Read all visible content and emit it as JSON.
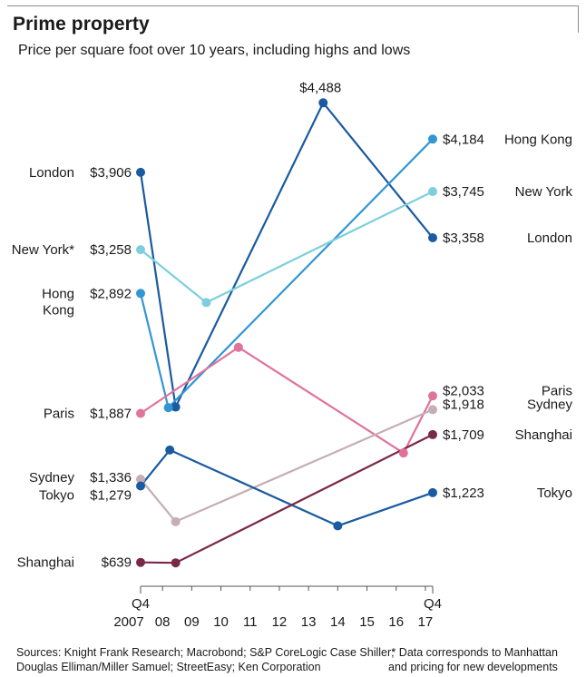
{
  "header": {
    "title": "Prime property",
    "subtitle": "Price per square foot over 10 years, including highs and lows"
  },
  "footer": {
    "sources_line1": "Sources: Knight Frank Research; Macrobond; S&P CoreLogic Case Shiller;",
    "sources_line2": "Douglas Elliman/Miller Samuel; StreetEasy; Ken Corporation",
    "note_line1": "* Data corresponds to Manhattan",
    "note_line2": "and pricing for new developments"
  },
  "chart_data": {
    "type": "line",
    "xlim": [
      2007.75,
      2017.75
    ],
    "ylim": [
      439,
      4688
    ],
    "x_tick_labels": [
      {
        "x": 2007.75,
        "label": "Q4",
        "sub": "2007"
      },
      {
        "x": 2008.5,
        "label": "08"
      },
      {
        "x": 2009.5,
        "label": "09"
      },
      {
        "x": 2010.5,
        "label": "10"
      },
      {
        "x": 2011.5,
        "label": "11"
      },
      {
        "x": 2012.5,
        "label": "12"
      },
      {
        "x": 2013.5,
        "label": "13"
      },
      {
        "x": 2014.5,
        "label": "14"
      },
      {
        "x": 2015.5,
        "label": "15"
      },
      {
        "x": 2016.5,
        "label": "16"
      },
      {
        "x": 2017.5,
        "label": "17"
      },
      {
        "x": 2017.75,
        "label": "Q4"
      }
    ],
    "series": [
      {
        "name": "London",
        "color": "#1a5aa0",
        "points": [
          [
            2007.75,
            3906
          ],
          [
            2008.95,
            1940
          ],
          [
            2014.0,
            4488
          ],
          [
            2017.75,
            3358
          ]
        ],
        "start": {
          "name": "London",
          "value": "$3,906"
        },
        "end": {
          "name": "London",
          "value": "$3,358"
        },
        "peak": {
          "value": "$4,488"
        }
      },
      {
        "name": "Hong Kong",
        "color": "#3396d3",
        "points": [
          [
            2007.75,
            2892
          ],
          [
            2008.7,
            1935
          ],
          [
            2017.75,
            4184
          ]
        ],
        "start": {
          "name": "Hong\nKong",
          "value": "$2,892"
        },
        "end": {
          "name": "Hong Kong",
          "value": "$4,184"
        }
      },
      {
        "name": "New York",
        "color": "#7dcfdd",
        "points": [
          [
            2007.75,
            3258
          ],
          [
            2010.0,
            2815
          ],
          [
            2017.75,
            3745
          ]
        ],
        "start": {
          "name": "New York*",
          "value": "$3,258"
        },
        "end": {
          "name": "New York",
          "value": "$3,745"
        }
      },
      {
        "name": "Paris",
        "color": "#e0739c",
        "points": [
          [
            2007.75,
            1887
          ],
          [
            2011.1,
            2440
          ],
          [
            2016.75,
            1555
          ],
          [
            2017.75,
            2033
          ]
        ],
        "start": {
          "name": "Paris",
          "value": "$1,887"
        },
        "end": {
          "name": "Paris",
          "value": "$2,033"
        }
      },
      {
        "name": "Sydney",
        "color": "#c5aeb4",
        "points": [
          [
            2007.75,
            1336
          ],
          [
            2008.95,
            980
          ],
          [
            2017.75,
            1918
          ]
        ],
        "start": {
          "name": "Sydney",
          "value": "$1,336"
        },
        "end": {
          "name": "Sydney",
          "value": "$1,918"
        }
      },
      {
        "name": "Tokyo",
        "color": "#1a5aa0",
        "points": [
          [
            2007.75,
            1279
          ],
          [
            2008.75,
            1580
          ],
          [
            2014.5,
            945
          ],
          [
            2017.75,
            1223
          ]
        ],
        "start": {
          "name": "Tokyo",
          "value": "$1,279"
        },
        "end": {
          "name": "Tokyo",
          "value": "$1,223"
        }
      },
      {
        "name": "Shanghai",
        "color": "#7a2848",
        "points": [
          [
            2007.75,
            639
          ],
          [
            2008.95,
            635
          ],
          [
            2017.75,
            1709
          ]
        ],
        "start": {
          "name": "Shanghai",
          "value": "$639"
        },
        "end": {
          "name": "Shanghai",
          "value": "$1,709"
        }
      }
    ]
  }
}
